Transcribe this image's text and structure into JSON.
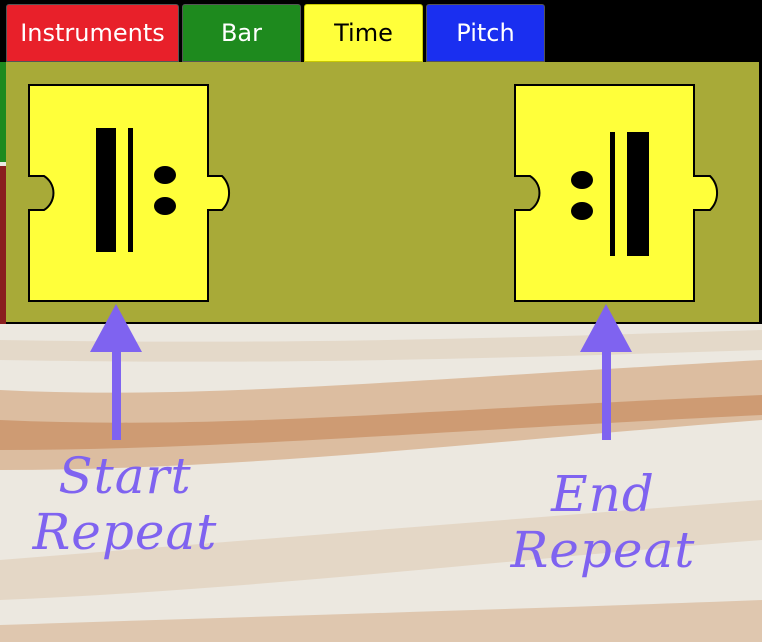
{
  "tabs": [
    {
      "label": "Instruments",
      "color": "#e8202a"
    },
    {
      "label": "Bar",
      "color": "#1e8a1e"
    },
    {
      "label": "Time",
      "color": "#ffff3a"
    },
    {
      "label": "Pitch",
      "color": "#1a2ff0"
    }
  ],
  "active_tab": "Time",
  "palette": {
    "background": "#a8aa38",
    "blocks": [
      {
        "icon": "start-repeat-icon"
      },
      {
        "icon": "end-repeat-icon"
      }
    ]
  },
  "annotations": {
    "start": {
      "line1": "Start",
      "line2": "Repeat"
    },
    "end": {
      "line1": "End",
      "line2": "Repeat"
    },
    "color": "#7f63f0"
  }
}
